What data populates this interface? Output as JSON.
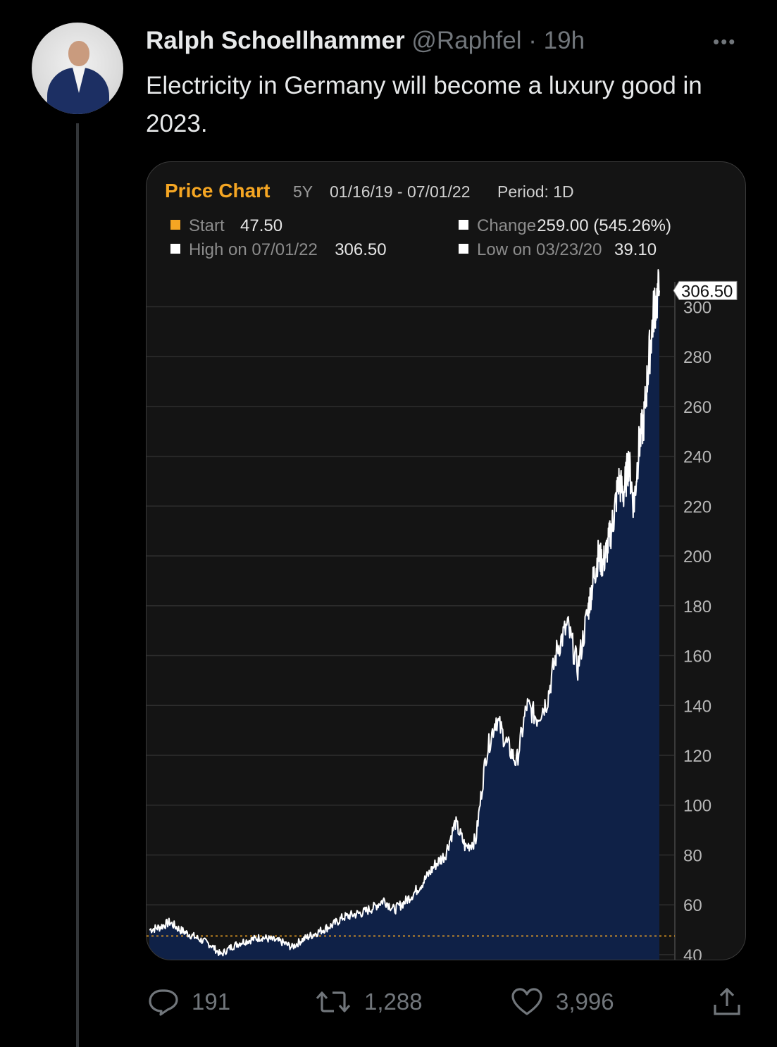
{
  "tweet": {
    "author_name": "Ralph Schoellhammer",
    "handle": "@Raphfel",
    "separator": "·",
    "time": "19h",
    "text": "Electricity in Germany will become a luxury good in 2023.",
    "more_icon": "more-icon"
  },
  "actions": {
    "replies": "191",
    "retweets": "1,288",
    "likes": "3,996",
    "icons": [
      "reply-icon",
      "retweet-icon",
      "like-icon",
      "share-icon"
    ]
  },
  "colors": {
    "background": "#000000",
    "chart_bg": "#141414",
    "title_orange": "#f5a623",
    "area_fill": "#0f2147",
    "line": "#ffffff",
    "muted": "#71767b"
  },
  "chart_data": {
    "type": "area",
    "title": "Price Chart",
    "range": "5Y",
    "dates": "01/16/19 - 07/01/22",
    "period": "Period: 1D",
    "legend": [
      {
        "label": "Start",
        "value": "47.50",
        "color": "#f5a623"
      },
      {
        "label": "Change",
        "value": "259.00 (545.26%)",
        "color": "#ffffff"
      },
      {
        "label": "High on 07/01/22",
        "value": "306.50",
        "color": "#ffffff"
      },
      {
        "label": "Low on 03/23/20",
        "value": "39.10",
        "color": "#ffffff"
      }
    ],
    "last_value_label": "306.50",
    "reference_line": 47.5,
    "ylim": [
      38,
      310
    ],
    "yticks": [
      40,
      60,
      80,
      100,
      120,
      140,
      160,
      180,
      200,
      220,
      240,
      260,
      280,
      300
    ],
    "grid": true,
    "x": [
      0,
      0.02,
      0.04,
      0.06,
      0.08,
      0.1,
      0.12,
      0.14,
      0.16,
      0.18,
      0.2,
      0.22,
      0.24,
      0.26,
      0.28,
      0.3,
      0.32,
      0.34,
      0.36,
      0.38,
      0.4,
      0.42,
      0.44,
      0.46,
      0.48,
      0.5,
      0.52,
      0.54,
      0.56,
      0.58,
      0.6,
      0.62,
      0.64,
      0.66,
      0.68,
      0.7,
      0.72,
      0.74,
      0.76,
      0.78,
      0.8,
      0.82,
      0.84,
      0.86,
      0.87,
      0.88,
      0.89,
      0.9,
      0.91,
      0.92,
      0.93,
      0.94,
      0.95,
      0.96,
      0.97,
      0.98,
      0.99,
      1.0
    ],
    "values": [
      50,
      51,
      53,
      50,
      48,
      46,
      44,
      40,
      43,
      45,
      46,
      47,
      46,
      45,
      43,
      46,
      48,
      50,
      52,
      55,
      56,
      57,
      59,
      62,
      58,
      61,
      65,
      70,
      76,
      80,
      93,
      83,
      86,
      120,
      135,
      125,
      117,
      140,
      135,
      142,
      163,
      172,
      155,
      178,
      190,
      200,
      197,
      205,
      215,
      230,
      225,
      238,
      220,
      244,
      255,
      280,
      300,
      306.5
    ],
    "dates_note": ""
  }
}
